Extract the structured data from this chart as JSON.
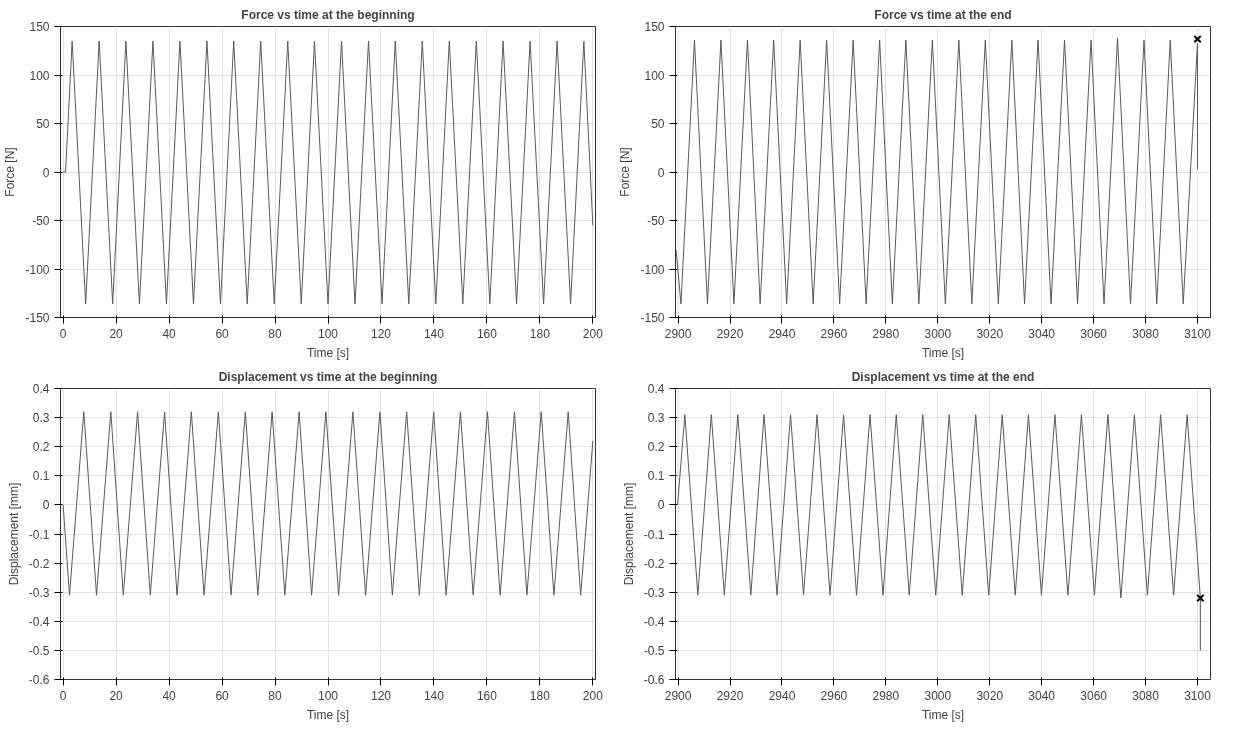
{
  "chart_data": [
    {
      "type": "line",
      "title": "Force vs time at the beginning",
      "xlabel": "Time [s]",
      "ylabel": "Force [N]",
      "xlim": [
        -1,
        201
      ],
      "ylim": [
        -150,
        150
      ],
      "xticks": [
        0,
        20,
        40,
        60,
        80,
        100,
        120,
        140,
        160,
        180,
        200
      ],
      "yticks": [
        -150,
        -100,
        -50,
        0,
        50,
        100,
        150
      ],
      "grid": true,
      "series": [
        {
          "color": "#5a5a5a",
          "x": [
            0,
            0.9,
            3.4,
            8.5,
            13.6,
            18.7,
            23.7,
            28.8,
            33.9,
            39.0,
            44.1,
            49.2,
            54.3,
            59.4,
            64.4,
            69.5,
            74.6,
            79.7,
            84.8,
            89.9,
            94.9,
            100.0,
            105.1,
            110.2,
            115.3,
            120.4,
            125.4,
            130.5,
            135.6,
            140.7,
            145.8,
            150.9,
            156.0,
            161.1,
            166.1,
            171.2,
            176.3,
            181.4,
            186.5,
            191.6,
            196.6,
            200
          ],
          "values": [
            0,
            0,
            135,
            -136,
            135,
            -136,
            135,
            -136,
            135,
            -136,
            135,
            -136,
            135,
            -136,
            135,
            -136,
            135,
            -136,
            135,
            -136,
            135,
            -136,
            135,
            -136,
            135,
            -136,
            135,
            -136,
            135,
            -136,
            135,
            -136,
            135,
            -136,
            135,
            -136,
            135,
            -136,
            135,
            -136,
            135,
            -55
          ]
        }
      ]
    },
    {
      "type": "line",
      "title": "Force vs time at the end",
      "xlabel": "Time [s]",
      "ylabel": "Force [N]",
      "xlim": [
        2899,
        3105
      ],
      "ylim": [
        -150,
        150
      ],
      "xticks": [
        2900,
        2920,
        2940,
        2960,
        2980,
        3000,
        3020,
        3040,
        3060,
        3080,
        3100
      ],
      "yticks": [
        -150,
        -100,
        -50,
        0,
        50,
        100,
        150
      ],
      "grid": true,
      "series": [
        {
          "color": "#5a5a5a",
          "x": [
            2899.2,
            2901.1,
            2906.3,
            2911.3,
            2916.5,
            2921.5,
            2926.7,
            2931.6,
            2936.8,
            2941.8,
            2947.0,
            2952.0,
            2957.2,
            2962.2,
            2967.4,
            2972.4,
            2977.6,
            2982.5,
            2987.7,
            2992.7,
            2997.9,
            3002.9,
            3008.1,
            3013.1,
            3018.3,
            3023.3,
            3028.5,
            3033.4,
            3038.6,
            3043.6,
            3048.8,
            3053.8,
            3059.0,
            3064.0,
            3069.2,
            3074.2,
            3079.4,
            3084.3,
            3089.5,
            3094.5,
            3100,
            3100
          ],
          "values": [
            -80,
            -136,
            136,
            -136,
            136,
            -136,
            136,
            -136,
            136,
            -136,
            136,
            -136,
            136,
            -136,
            136,
            -136,
            136,
            -136,
            136,
            -136,
            136,
            -136,
            136,
            -136,
            136,
            -136,
            136,
            -136,
            136,
            -136,
            136,
            -136,
            136,
            -136,
            138,
            -136,
            136,
            -136,
            136,
            -136,
            133,
            3
          ]
        },
        {
          "type": "scatter",
          "marker": "cross",
          "color": "#000000",
          "x": [
            3100
          ],
          "values": [
            137
          ]
        }
      ]
    },
    {
      "type": "line",
      "title": "Displacement vs time at the beginning",
      "xlabel": "Time [s]",
      "ylabel": "Displacement [mm]",
      "xlim": [
        -1,
        201
      ],
      "ylim": [
        -0.6,
        0.4
      ],
      "xticks": [
        0,
        20,
        40,
        60,
        80,
        100,
        120,
        140,
        160,
        180,
        200
      ],
      "yticks": [
        -0.6,
        -0.5,
        -0.4,
        -0.3,
        -0.2,
        -0.1,
        0,
        0.1,
        0.2,
        0.3,
        0.4
      ],
      "grid": true,
      "series": [
        {
          "color": "#5a5a5a",
          "x": [
            0,
            2.4,
            7.8,
            12.6,
            18.0,
            22.7,
            28.1,
            32.9,
            38.3,
            43.0,
            48.4,
            53.2,
            58.6,
            63.4,
            68.8,
            73.5,
            78.9,
            83.7,
            89.1,
            93.8,
            99.2,
            104.0,
            109.4,
            114.2,
            119.6,
            124.3,
            129.7,
            134.5,
            139.9,
            144.6,
            150.0,
            154.8,
            160.2,
            165.0,
            170.4,
            175.1,
            180.5,
            185.3,
            190.7,
            195.4,
            200
          ],
          "values": [
            0,
            -0.31,
            0.32,
            -0.31,
            0.32,
            -0.31,
            0.32,
            -0.31,
            0.32,
            -0.31,
            0.32,
            -0.31,
            0.32,
            -0.31,
            0.32,
            -0.31,
            0.32,
            -0.31,
            0.32,
            -0.31,
            0.32,
            -0.31,
            0.32,
            -0.31,
            0.32,
            -0.31,
            0.32,
            -0.31,
            0.32,
            -0.31,
            0.32,
            -0.31,
            0.32,
            -0.31,
            0.32,
            -0.31,
            0.32,
            -0.31,
            0.32,
            -0.31,
            0.22
          ]
        }
      ]
    },
    {
      "type": "line",
      "title": "Displacement vs time at the end",
      "xlabel": "Time [s]",
      "ylabel": "Displacement [mm]",
      "xlim": [
        2899,
        3105
      ],
      "ylim": [
        -0.6,
        0.4
      ],
      "xticks": [
        2900,
        2920,
        2940,
        2960,
        2980,
        3000,
        3020,
        3040,
        3060,
        3080,
        3100
      ],
      "yticks": [
        -0.6,
        -0.5,
        -0.4,
        -0.3,
        -0.2,
        -0.1,
        0,
        0.1,
        0.2,
        0.3,
        0.4
      ],
      "grid": true,
      "series": [
        {
          "color": "#5a5a5a",
          "x": [
            2899.8,
            2902.6,
            2907.6,
            2912.8,
            2917.8,
            2923.0,
            2928.0,
            2933.1,
            2938.1,
            2943.3,
            2948.3,
            2953.5,
            2958.5,
            2963.7,
            2968.7,
            2973.9,
            2978.9,
            2984.0,
            2989.0,
            2994.2,
            2999.2,
            3004.4,
            3009.4,
            3014.6,
            3019.6,
            3024.8,
            3029.8,
            3034.9,
            3039.9,
            3045.1,
            3050.1,
            3055.3,
            3060.3,
            3065.5,
            3070.5,
            3075.7,
            3080.7,
            3085.8,
            3090.8,
            3096.0,
            3101.1,
            3101.1
          ],
          "values": [
            0,
            0.31,
            -0.31,
            0.31,
            -0.31,
            0.31,
            -0.31,
            0.31,
            -0.31,
            0.31,
            -0.31,
            0.31,
            -0.31,
            0.31,
            -0.31,
            0.31,
            -0.31,
            0.31,
            -0.31,
            0.31,
            -0.31,
            0.31,
            -0.31,
            0.31,
            -0.31,
            0.31,
            -0.31,
            0.31,
            -0.31,
            0.31,
            -0.31,
            0.31,
            -0.31,
            0.31,
            -0.32,
            0.31,
            -0.31,
            0.31,
            -0.31,
            0.31,
            -0.32,
            -0.5
          ]
        },
        {
          "type": "scatter",
          "marker": "cross",
          "color": "#000000",
          "x": [
            3101.1
          ],
          "values": [
            -0.32
          ]
        }
      ]
    }
  ]
}
